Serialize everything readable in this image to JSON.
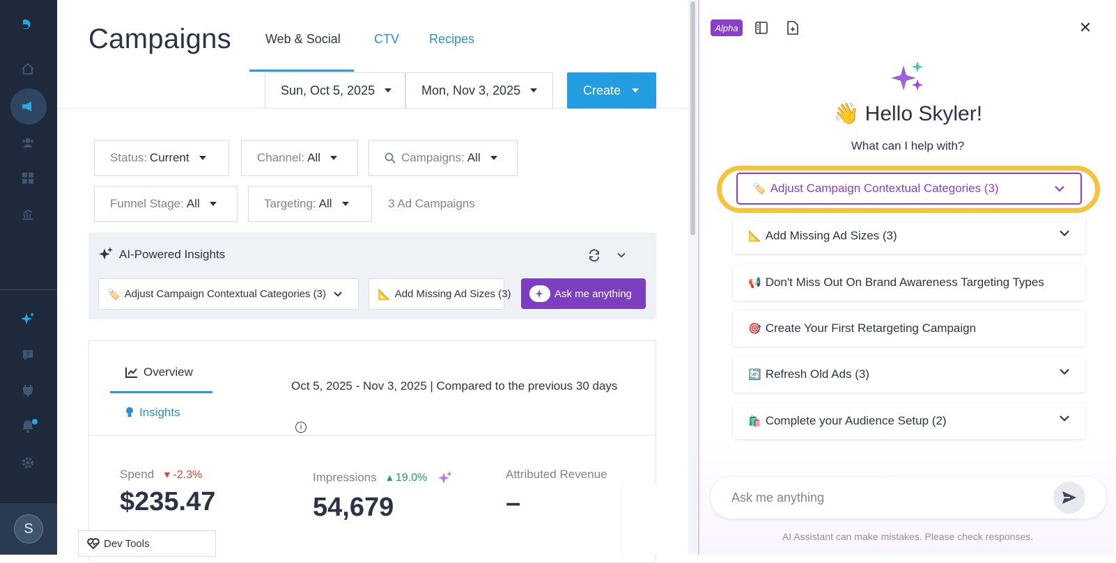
{
  "sidebar": {
    "icons": [
      "logo-icon",
      "home-icon",
      "megaphone-icon",
      "audience-icon",
      "dashboard-icon",
      "reports-icon",
      "ai-sparkle-icon",
      "help-icon",
      "plug-icon",
      "bell-icon",
      "gear-icon"
    ],
    "avatar_initial": "S"
  },
  "header": {
    "title": "Campaigns",
    "tabs": [
      {
        "label": "Web & Social"
      },
      {
        "label": "CTV"
      },
      {
        "label": "Recipes"
      }
    ],
    "start_date": "Sun, Oct 5, 2025",
    "end_date": "Mon, Nov 3, 2025",
    "create_label": "Create"
  },
  "filters": {
    "status_label": "Status:",
    "status_value": "Current",
    "channel_label": "Channel:",
    "channel_value": "All",
    "campaigns_label": "Campaigns:",
    "campaigns_value": "All",
    "funnel_label": "Funnel Stage:",
    "funnel_value": "All",
    "targeting_label": "Targeting:",
    "targeting_value": "All",
    "count_text": "3 Ad Campaigns"
  },
  "insights": {
    "title": "AI-Powered Insights",
    "chips": [
      {
        "emoji": "🏷️",
        "label": "Adjust Campaign Contextual Categories (3)"
      },
      {
        "emoji": "📐",
        "label": "Add Missing Ad Sizes (3)"
      }
    ],
    "ask_label": "Ask me anything"
  },
  "overview": {
    "tab_overview": "Overview",
    "tab_insights": "Insights",
    "range_text": "Oct 5, 2025 - Nov 3, 2025 | Compared to the previous 30 days",
    "metrics": [
      {
        "label": "Spend",
        "delta": "-2.3%",
        "value": "$235.47"
      },
      {
        "label": "Impressions",
        "delta": "19.0%",
        "value": "54,679"
      },
      {
        "label": "Attributed Revenue",
        "delta": "",
        "value": "–"
      }
    ]
  },
  "devtools_label": "Dev Tools",
  "assistant": {
    "badge": "Alpha",
    "greeting_emoji": "👋",
    "greeting": "Hello Skyler!",
    "subtitle": "What can I help with?",
    "suggestions": [
      {
        "emoji": "🏷️",
        "label": "Adjust Campaign Contextual Categories (3)",
        "expandable": true
      },
      {
        "emoji": "📐",
        "label": "Add Missing Ad Sizes (3)",
        "expandable": true
      },
      {
        "emoji": "📢",
        "label": "Don't Miss Out On Brand Awareness Targeting Types",
        "expandable": false
      },
      {
        "emoji": "🎯",
        "label": "Create Your First Retargeting Campaign",
        "expandable": false
      },
      {
        "emoji": "🔄",
        "label": "Refresh Old Ads (3)",
        "expandable": true
      },
      {
        "emoji": "🛍️",
        "label": "Complete your Audience Setup (2)",
        "expandable": true
      }
    ],
    "input_placeholder": "Ask me anything",
    "disclaimer": "AI Assistant can make mistakes. Please check responses."
  },
  "colors": {
    "sidebar": "#1e2a3b",
    "primary_blue": "#239ce0",
    "purple": "#8a3fc7",
    "highlight_yellow": "#f4c43d",
    "negative": "#e23d3d",
    "positive": "#16a06f"
  }
}
